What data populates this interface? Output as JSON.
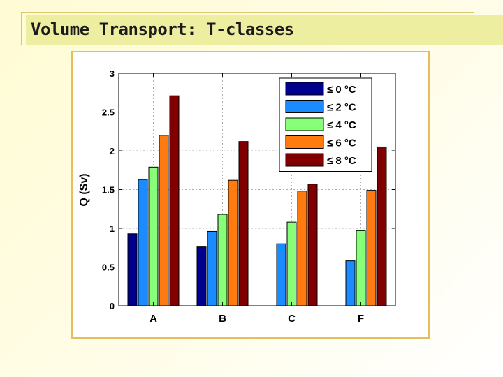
{
  "slide": {
    "title": "Volume Transport: T-classes",
    "title_bg": "#eeeea0",
    "frame_color": "#e8bd5c"
  },
  "chart_data": {
    "type": "bar",
    "title": "",
    "xlabel": "",
    "ylabel": "Q (Sv)",
    "ylim": [
      0,
      3
    ],
    "yticks": [
      0,
      0.5,
      1,
      1.5,
      2,
      2.5,
      3
    ],
    "ytick_labels": [
      "0",
      "0.5",
      "1",
      "1.5",
      "2",
      "2.5",
      "3"
    ],
    "categories": [
      "A",
      "B",
      "C",
      "F"
    ],
    "grid": true,
    "legend_position": "top-right",
    "series": [
      {
        "name": "≤ 0 °C",
        "color": "#00008f",
        "values": [
          0.93,
          0.76,
          null,
          null
        ]
      },
      {
        "name": "≤ 2 °C",
        "color": "#1a8cff",
        "values": [
          1.63,
          0.96,
          0.8,
          0.58
        ]
      },
      {
        "name": "≤ 4 °C",
        "color": "#88ff78",
        "values": [
          1.79,
          1.18,
          1.08,
          0.97
        ]
      },
      {
        "name": "≤ 6 °C",
        "color": "#ff7a0f",
        "values": [
          2.2,
          1.62,
          1.48,
          1.49
        ]
      },
      {
        "name": "≤ 8 °C",
        "color": "#800000",
        "values": [
          2.71,
          2.12,
          1.57,
          2.05
        ]
      }
    ]
  }
}
